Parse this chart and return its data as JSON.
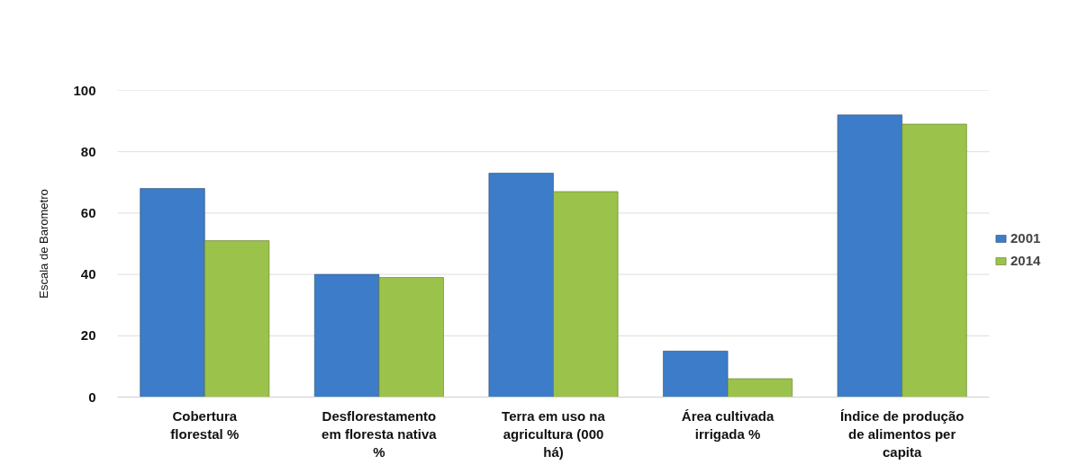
{
  "chart_data": {
    "type": "bar",
    "ylabel": "Escala de Barometro",
    "categories": [
      "Cobertura florestal %",
      "Desflorestamento em floresta nativa %",
      "Terra em uso na agricultura (000 há)",
      "Área cultivada irrigada %",
      "Índice de produção de alimentos per capita"
    ],
    "series": [
      {
        "name": "2001",
        "color": "#3d7cc9",
        "values": [
          68,
          40,
          73,
          15,
          92
        ]
      },
      {
        "name": "2014",
        "color": "#9bc24a",
        "values": [
          51,
          39,
          67,
          6,
          89
        ]
      }
    ],
    "ylim": [
      0,
      100
    ],
    "yticks": [
      0,
      20,
      40,
      60,
      80,
      100
    ],
    "grid": "y",
    "legend": "right"
  }
}
